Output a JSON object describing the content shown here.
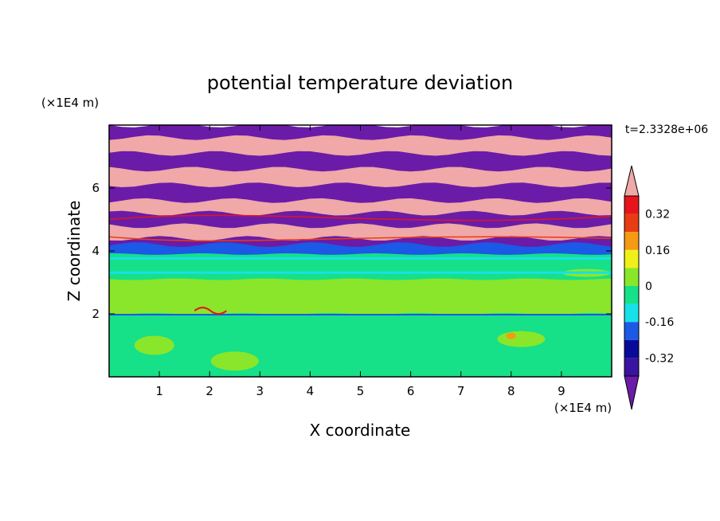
{
  "chart_data": {
    "type": "heatmap",
    "title": "potential temperature deviation",
    "xlabel": "X coordinate",
    "ylabel": "Z coordinate",
    "x_unit": "(×1E4 m)",
    "y_unit": "(×1E4 m)",
    "time_label": "t=2.3328e+06",
    "xlim": [
      0,
      10
    ],
    "ylim": [
      0,
      8
    ],
    "x_ticks": [
      "1",
      "2",
      "3",
      "4",
      "5",
      "6",
      "7",
      "8",
      "9"
    ],
    "y_ticks": [
      "2",
      "4",
      "6"
    ],
    "colorbar": {
      "tick_labels": [
        "0.32",
        "0.16",
        "0",
        "-0.16",
        "-0.32"
      ],
      "levels": [
        -0.4,
        -0.32,
        -0.24,
        -0.16,
        -0.08,
        0,
        0.08,
        0.16,
        0.24,
        0.32,
        0.4
      ],
      "colors": [
        "#6a1ca8",
        "#3a14a0",
        "#0a0a98",
        "#1a5ae6",
        "#18e0e8",
        "#16e088",
        "#8ae62a",
        "#f0f018",
        "#f59a12",
        "#e83c14",
        "#e8141c",
        "#f0a8a8"
      ],
      "extend": "both"
    },
    "field_bands": [
      {
        "z_range": [
          7.6,
          8.0
        ],
        "value": -0.45
      },
      {
        "z_range": [
          7.1,
          7.6
        ],
        "value": 0.45
      },
      {
        "z_range": [
          6.6,
          7.1
        ],
        "value": -0.45
      },
      {
        "z_range": [
          6.1,
          6.6
        ],
        "value": 0.45
      },
      {
        "z_range": [
          5.6,
          6.1
        ],
        "value": -0.45
      },
      {
        "z_range": [
          5.2,
          5.6
        ],
        "value": 0.45
      },
      {
        "z_range": [
          4.8,
          5.2
        ],
        "value": -0.45
      },
      {
        "z_range": [
          4.4,
          4.8
        ],
        "value": 0.45
      },
      {
        "z_range": [
          4.2,
          4.4
        ],
        "value": -0.45
      },
      {
        "z_range": [
          3.9,
          4.2
        ],
        "value": -0.2
      },
      {
        "z_range": [
          3.1,
          3.9
        ],
        "value": -0.04
      },
      {
        "z_range": [
          2.0,
          3.1
        ],
        "value": 0.04
      },
      {
        "z_range": [
          0.0,
          2.0
        ],
        "value": -0.02
      }
    ]
  }
}
